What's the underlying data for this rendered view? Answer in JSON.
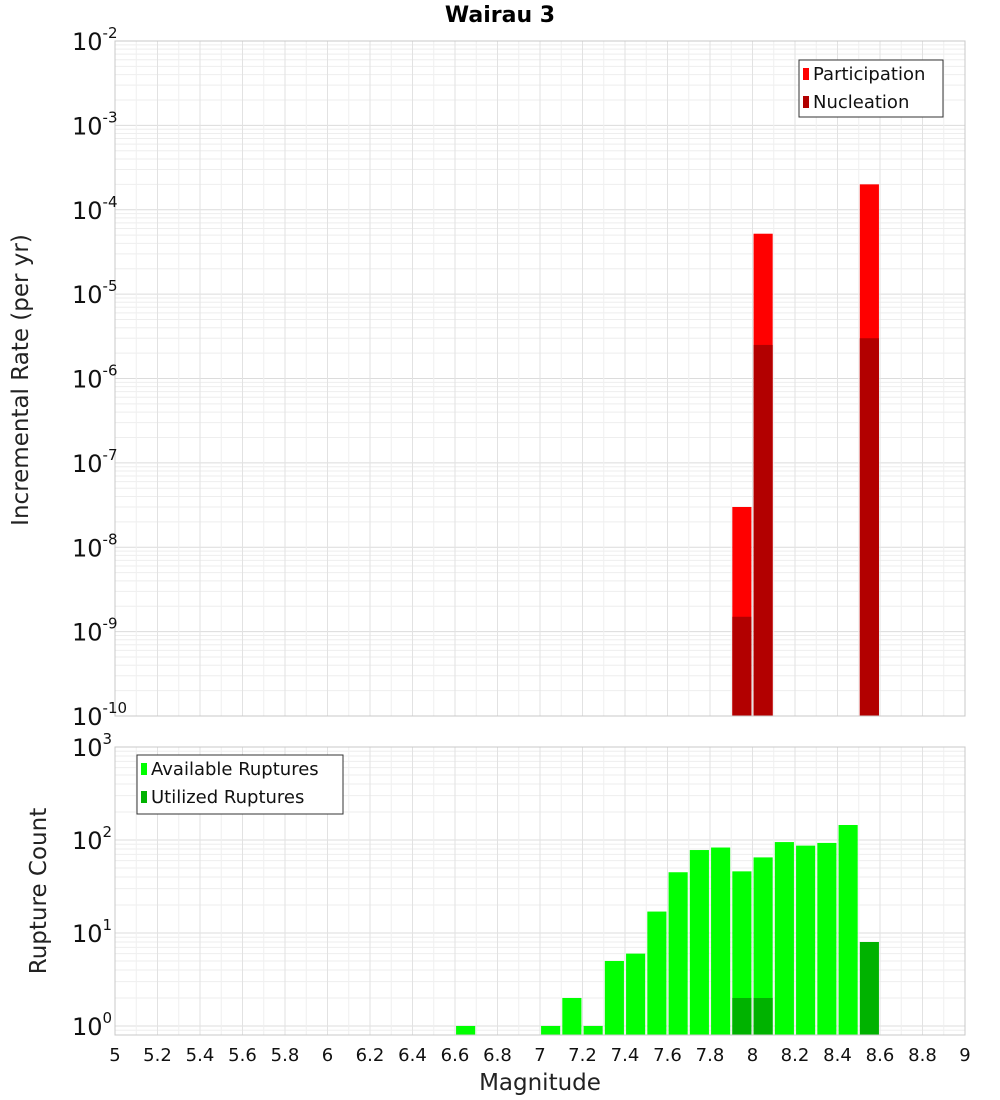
{
  "chart_data": {
    "type": "bar",
    "title": "Wairau 3",
    "xlabel": "Magnitude",
    "xlim": [
      5,
      9
    ],
    "x_ticks": [
      "5",
      "5.2",
      "5.4",
      "5.6",
      "5.8",
      "6",
      "6.2",
      "6.4",
      "6.6",
      "6.8",
      "7",
      "7.2",
      "7.4",
      "7.6",
      "7.8",
      "8",
      "8.2",
      "8.4",
      "8.6",
      "8.8",
      "9"
    ],
    "panels": [
      {
        "id": "rate",
        "ylabel": "Incremental Rate (per yr)",
        "yscale": "log",
        "ylim": [
          1e-10,
          0.01
        ],
        "y_ticks": [
          {
            "base": "10",
            "exp": "-10",
            "value": 1e-10
          },
          {
            "base": "10",
            "exp": "-9",
            "value": 1e-09
          },
          {
            "base": "10",
            "exp": "-8",
            "value": 1e-08
          },
          {
            "base": "10",
            "exp": "-7",
            "value": 1e-07
          },
          {
            "base": "10",
            "exp": "-6",
            "value": 1e-06
          },
          {
            "base": "10",
            "exp": "-5",
            "value": 1e-05
          },
          {
            "base": "10",
            "exp": "-4",
            "value": 0.0001
          },
          {
            "base": "10",
            "exp": "-3",
            "value": 0.001
          },
          {
            "base": "10",
            "exp": "-2",
            "value": 0.01
          }
        ],
        "legend": [
          "Participation",
          "Nucleation"
        ],
        "legend_position": "top-right",
        "series": [
          {
            "name": "Participation",
            "color": "#ff0000",
            "points": [
              {
                "x": 7.95,
                "y": 3e-08
              },
              {
                "x": 8.05,
                "y": 5.2e-05
              },
              {
                "x": 8.55,
                "y": 0.0002
              }
            ]
          },
          {
            "name": "Nucleation",
            "color": "#b20000",
            "points": [
              {
                "x": 7.95,
                "y": 1.5e-09
              },
              {
                "x": 8.05,
                "y": 2.5e-06
              },
              {
                "x": 8.55,
                "y": 3e-06
              }
            ]
          }
        ]
      },
      {
        "id": "count",
        "ylabel": "Rupture Count",
        "yscale": "log",
        "ylim": [
          0.8,
          1000
        ],
        "y_ticks": [
          {
            "base": "10",
            "exp": "0",
            "value": 1
          },
          {
            "base": "10",
            "exp": "1",
            "value": 10
          },
          {
            "base": "10",
            "exp": "2",
            "value": 100
          },
          {
            "base": "10",
            "exp": "3",
            "value": 1000
          }
        ],
        "legend": [
          "Available Ruptures",
          "Utilized Ruptures"
        ],
        "legend_position": "top-left",
        "series": [
          {
            "name": "Available Ruptures",
            "color": "#00ff00",
            "points": [
              {
                "x": 6.65,
                "y": 1
              },
              {
                "x": 7.05,
                "y": 1
              },
              {
                "x": 7.15,
                "y": 2
              },
              {
                "x": 7.25,
                "y": 1
              },
              {
                "x": 7.35,
                "y": 5
              },
              {
                "x": 7.45,
                "y": 6
              },
              {
                "x": 7.55,
                "y": 17
              },
              {
                "x": 7.65,
                "y": 45
              },
              {
                "x": 7.75,
                "y": 78
              },
              {
                "x": 7.85,
                "y": 83
              },
              {
                "x": 7.95,
                "y": 46
              },
              {
                "x": 8.05,
                "y": 65
              },
              {
                "x": 8.15,
                "y": 95
              },
              {
                "x": 8.25,
                "y": 87
              },
              {
                "x": 8.35,
                "y": 93
              },
              {
                "x": 8.45,
                "y": 145
              }
            ]
          },
          {
            "name": "Utilized Ruptures",
            "color": "#00b200",
            "points": [
              {
                "x": 7.95,
                "y": 2
              },
              {
                "x": 8.05,
                "y": 2
              },
              {
                "x": 8.55,
                "y": 8
              }
            ]
          }
        ]
      }
    ]
  }
}
